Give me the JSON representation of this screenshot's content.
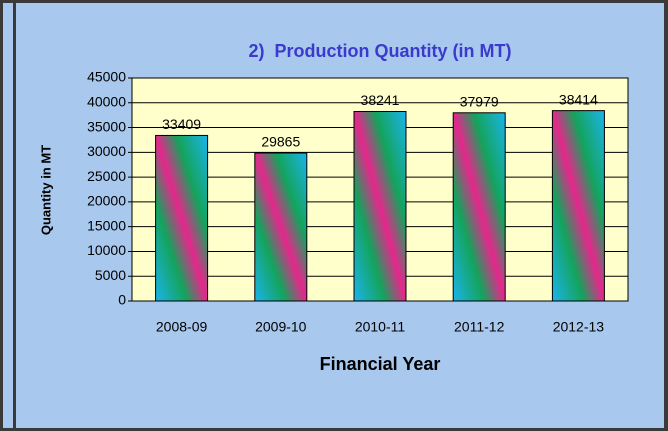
{
  "chart_data": {
    "type": "bar",
    "title": "2)  Production Quantity (in MT)",
    "x_label": "Financial Year",
    "y_label": "Quantity in MT",
    "categories": [
      "2008-09",
      "2009-10",
      "2010-11",
      "2011-12",
      "2012-13"
    ],
    "values": [
      33409,
      29865,
      38241,
      37979,
      38414
    ],
    "ylim": [
      0,
      45000
    ],
    "yticks": [
      0,
      5000,
      10000,
      15000,
      20000,
      25000,
      30000,
      35000,
      40000,
      45000
    ],
    "grid": true
  }
}
